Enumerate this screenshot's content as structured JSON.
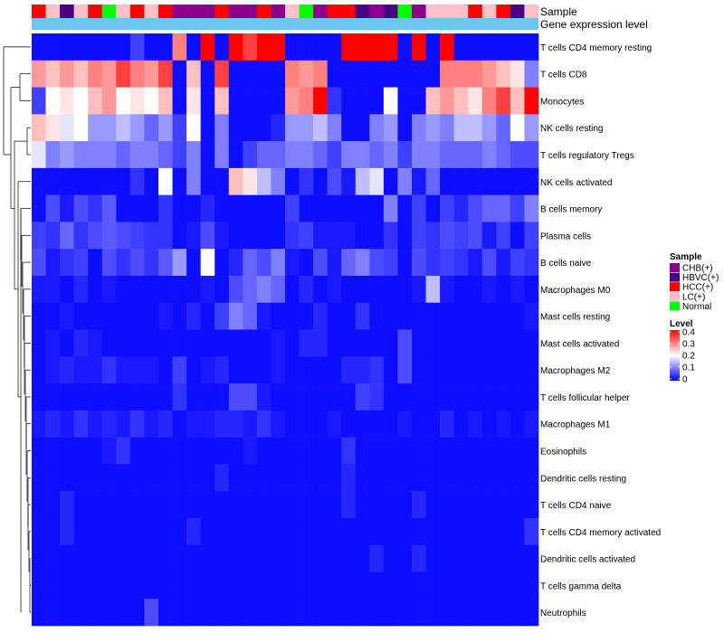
{
  "chart_data": {
    "type": "heatmap",
    "annotation_row_labels": [
      "Sample",
      "Gene expression level"
    ],
    "row_labels": [
      "T cells CD4 memory resting",
      "T cells CD8",
      "Monocytes",
      "NK cells resting",
      "T cells regulatory  Tregs",
      "NK cells activated",
      "B cells memory",
      "Plasma cells",
      "B cells naive",
      "Macrophages M0",
      "Mast cells resting",
      "Mast cells activated",
      "Macrophages M2",
      "T cells follicular helper",
      "Macrophages M1",
      "Eosinophils",
      "Dendritic cells resting",
      "T cells CD4 naive",
      "T cells CD4 memory activated",
      "Dendritic cells activated",
      "T cells gamma delta",
      "Neutrophils"
    ],
    "sample_groups": [
      "HCC(+)",
      "LC(+)",
      "HBVC(+)",
      "LC(+)",
      "HCC(+)",
      "Normal",
      "LC(+)",
      "HCC(+)",
      "LC(+)",
      "HCC(+)",
      "CHB(+)",
      "CHB(+)",
      "CHB(+)",
      "HCC(+)",
      "CHB(+)",
      "CHB(+)",
      "HCC(+)",
      "CHB(+)",
      "LC(+)",
      "Normal",
      "CHB(+)",
      "HCC(+)",
      "HCC(+)",
      "HBVC(+)",
      "CHB(+)",
      "HBVC(+)",
      "Normal",
      "CHB(+)",
      "LC(+)",
      "LC(+)",
      "LC(+)",
      "HCC(+)",
      "LC(+)",
      "HCC(+)",
      "HBVC(+)",
      "LC(+)"
    ],
    "group_colors": {
      "CHB(+)": "#8B008B",
      "HBVC(+)": "#4B0082",
      "HCC(+)": "#FF0000",
      "LC(+)": "#FFC0CB",
      "Normal": "#00FF00"
    },
    "gene_expression_color": "#6CC6F0",
    "values": [
      [
        0.01,
        0.01,
        0.01,
        0.01,
        0.01,
        0.01,
        0.01,
        0.05,
        0.01,
        0.01,
        0.3,
        0.01,
        0.4,
        0.01,
        0.4,
        0.35,
        0.4,
        0.4,
        0.01,
        0.01,
        0.01,
        0.01,
        0.4,
        0.4,
        0.4,
        0.4,
        0.01,
        0.4,
        0.01,
        0.4,
        0.01,
        0.01,
        0.01,
        0.01,
        0.01,
        0.01
      ],
      [
        0.28,
        0.25,
        0.28,
        0.25,
        0.3,
        0.28,
        0.35,
        0.3,
        0.28,
        0.35,
        0.01,
        0.25,
        0.01,
        0.35,
        0.01,
        0.01,
        0.01,
        0.01,
        0.3,
        0.28,
        0.3,
        0.01,
        0.01,
        0.01,
        0.01,
        0.01,
        0.01,
        0.01,
        0.01,
        0.3,
        0.3,
        0.3,
        0.28,
        0.25,
        0.22,
        0.1
      ],
      [
        0.05,
        0.2,
        0.22,
        0.2,
        0.25,
        0.28,
        0.2,
        0.22,
        0.2,
        0.25,
        0.01,
        0.22,
        0.01,
        0.25,
        0.01,
        0.01,
        0.01,
        0.01,
        0.28,
        0.3,
        0.4,
        0.04,
        0.01,
        0.01,
        0.01,
        0.2,
        0.01,
        0.01,
        0.25,
        0.28,
        0.25,
        0.22,
        0.3,
        0.35,
        0.25,
        0.4
      ],
      [
        0.25,
        0.22,
        0.18,
        0.2,
        0.12,
        0.12,
        0.15,
        0.12,
        0.08,
        0.12,
        0.05,
        0.2,
        0.01,
        0.1,
        0.01,
        0.01,
        0.01,
        0.03,
        0.12,
        0.12,
        0.15,
        0.1,
        0.01,
        0.01,
        0.1,
        0.12,
        0.01,
        0.1,
        0.12,
        0.1,
        0.15,
        0.15,
        0.12,
        0.08,
        0.2,
        0.12
      ],
      [
        0.18,
        0.1,
        0.12,
        0.1,
        0.1,
        0.1,
        0.08,
        0.1,
        0.1,
        0.08,
        0.05,
        0.1,
        0.01,
        0.1,
        0.01,
        0.05,
        0.08,
        0.08,
        0.1,
        0.1,
        0.08,
        0.05,
        0.1,
        0.1,
        0.08,
        0.1,
        0.05,
        0.1,
        0.1,
        0.08,
        0.08,
        0.08,
        0.1,
        0.08,
        0.06,
        0.06
      ],
      [
        0.01,
        0.01,
        0.01,
        0.01,
        0.01,
        0.01,
        0.01,
        0.04,
        0.01,
        0.2,
        0.01,
        0.1,
        0.01,
        0.01,
        0.25,
        0.22,
        0.15,
        0.1,
        0.01,
        0.04,
        0.01,
        0.06,
        0.02,
        0.15,
        0.18,
        0.01,
        0.1,
        0.02,
        0.08,
        0.01,
        0.01,
        0.01,
        0.01,
        0.01,
        0.01,
        0.01
      ],
      [
        0.01,
        0.06,
        0.02,
        0.06,
        0.04,
        0.07,
        0.01,
        0.01,
        0.01,
        0.04,
        0.01,
        0.01,
        0.03,
        0.01,
        0.01,
        0.01,
        0.01,
        0.01,
        0.05,
        0.01,
        0.01,
        0.01,
        0.01,
        0.01,
        0.01,
        0.1,
        0.01,
        0.05,
        0.01,
        0.05,
        0.03,
        0.06,
        0.08,
        0.08,
        0.05,
        0.1
      ],
      [
        0.05,
        0.04,
        0.08,
        0.04,
        0.06,
        0.07,
        0.06,
        0.05,
        0.04,
        0.04,
        0.01,
        0.02,
        0.06,
        0.02,
        0.01,
        0.01,
        0.01,
        0.01,
        0.04,
        0.05,
        0.02,
        0.02,
        0.02,
        0.01,
        0.01,
        0.04,
        0.01,
        0.05,
        0.04,
        0.06,
        0.05,
        0.06,
        0.02,
        0.05,
        0.01,
        0.05
      ],
      [
        0.06,
        0.02,
        0.04,
        0.05,
        0.01,
        0.06,
        0.04,
        0.06,
        0.04,
        0.07,
        0.12,
        0.01,
        0.2,
        0.01,
        0.03,
        0.08,
        0.06,
        0.1,
        0.02,
        0.01,
        0.06,
        0.02,
        0.08,
        0.1,
        0.06,
        0.05,
        0.01,
        0.06,
        0.04,
        0.05,
        0.04,
        0.02,
        0.06,
        0.02,
        0.05,
        0.04
      ],
      [
        0.02,
        0.02,
        0.01,
        0.03,
        0.01,
        0.02,
        0.01,
        0.01,
        0.01,
        0.01,
        0.01,
        0.01,
        0.02,
        0.01,
        0.06,
        0.08,
        0.1,
        0.08,
        0.01,
        0.03,
        0.01,
        0.02,
        0.01,
        0.01,
        0.01,
        0.01,
        0.01,
        0.02,
        0.15,
        0.02,
        0.01,
        0.01,
        0.02,
        0.01,
        0.02,
        0.01
      ],
      [
        0.01,
        0.01,
        0.02,
        0.01,
        0.01,
        0.01,
        0.01,
        0.01,
        0.01,
        0.02,
        0.01,
        0.03,
        0.01,
        0.05,
        0.1,
        0.08,
        0.02,
        0.01,
        0.01,
        0.01,
        0.03,
        0.01,
        0.01,
        0.04,
        0.01,
        0.01,
        0.01,
        0.01,
        0.01,
        0.01,
        0.01,
        0.01,
        0.01,
        0.01,
        0.01,
        0.02
      ],
      [
        0.01,
        0.02,
        0.01,
        0.03,
        0.02,
        0.01,
        0.01,
        0.01,
        0.01,
        0.01,
        0.01,
        0.01,
        0.01,
        0.01,
        0.01,
        0.01,
        0.01,
        0.02,
        0.01,
        0.03,
        0.03,
        0.01,
        0.01,
        0.01,
        0.01,
        0.01,
        0.06,
        0.01,
        0.01,
        0.01,
        0.01,
        0.01,
        0.01,
        0.01,
        0.01,
        0.01
      ],
      [
        0.01,
        0.02,
        0.03,
        0.02,
        0.02,
        0.04,
        0.02,
        0.02,
        0.02,
        0.01,
        0.05,
        0.01,
        0.02,
        0.03,
        0.01,
        0.01,
        0.01,
        0.02,
        0.01,
        0.01,
        0.01,
        0.01,
        0.03,
        0.03,
        0.04,
        0.01,
        0.06,
        0.01,
        0.01,
        0.01,
        0.01,
        0.01,
        0.01,
        0.01,
        0.01,
        0.01
      ],
      [
        0.01,
        0.01,
        0.01,
        0.01,
        0.01,
        0.01,
        0.01,
        0.01,
        0.01,
        0.01,
        0.04,
        0.01,
        0.01,
        0.01,
        0.06,
        0.06,
        0.02,
        0.01,
        0.01,
        0.01,
        0.01,
        0.01,
        0.01,
        0.05,
        0.04,
        0.01,
        0.01,
        0.01,
        0.01,
        0.01,
        0.01,
        0.01,
        0.01,
        0.01,
        0.01,
        0.01
      ],
      [
        0.02,
        0.03,
        0.02,
        0.04,
        0.02,
        0.03,
        0.02,
        0.04,
        0.02,
        0.03,
        0.01,
        0.02,
        0.02,
        0.03,
        0.03,
        0.02,
        0.04,
        0.02,
        0.01,
        0.01,
        0.01,
        0.02,
        0.01,
        0.01,
        0.01,
        0.01,
        0.02,
        0.01,
        0.01,
        0.03,
        0.01,
        0.02,
        0.01,
        0.02,
        0.01,
        0.02
      ],
      [
        0.01,
        0.01,
        0.01,
        0.01,
        0.01,
        0.02,
        0.04,
        0.01,
        0.01,
        0.01,
        0.01,
        0.01,
        0.01,
        0.01,
        0.01,
        0.02,
        0.01,
        0.01,
        0.01,
        0.01,
        0.01,
        0.01,
        0.04,
        0.01,
        0.01,
        0.01,
        0.01,
        0.01,
        0.01,
        0.01,
        0.01,
        0.01,
        0.01,
        0.01,
        0.01,
        0.01
      ],
      [
        0.01,
        0.01,
        0.01,
        0.01,
        0.01,
        0.01,
        0.01,
        0.01,
        0.01,
        0.01,
        0.01,
        0.01,
        0.01,
        0.03,
        0.01,
        0.01,
        0.01,
        0.01,
        0.01,
        0.01,
        0.01,
        0.01,
        0.03,
        0.01,
        0.01,
        0.01,
        0.01,
        0.01,
        0.01,
        0.01,
        0.01,
        0.01,
        0.01,
        0.01,
        0.01,
        0.01
      ],
      [
        0.01,
        0.01,
        0.03,
        0.01,
        0.01,
        0.01,
        0.01,
        0.01,
        0.01,
        0.01,
        0.01,
        0.01,
        0.01,
        0.01,
        0.01,
        0.01,
        0.01,
        0.01,
        0.01,
        0.01,
        0.01,
        0.01,
        0.03,
        0.01,
        0.01,
        0.01,
        0.01,
        0.03,
        0.01,
        0.01,
        0.01,
        0.01,
        0.01,
        0.01,
        0.01,
        0.01
      ],
      [
        0.01,
        0.01,
        0.03,
        0.01,
        0.01,
        0.01,
        0.01,
        0.01,
        0.01,
        0.01,
        0.01,
        0.03,
        0.01,
        0.01,
        0.01,
        0.01,
        0.01,
        0.01,
        0.01,
        0.01,
        0.01,
        0.01,
        0.01,
        0.01,
        0.01,
        0.01,
        0.01,
        0.01,
        0.01,
        0.01,
        0.01,
        0.01,
        0.01,
        0.01,
        0.01,
        0.04
      ],
      [
        0.01,
        0.01,
        0.01,
        0.01,
        0.01,
        0.01,
        0.01,
        0.01,
        0.01,
        0.01,
        0.01,
        0.01,
        0.01,
        0.01,
        0.01,
        0.01,
        0.01,
        0.01,
        0.01,
        0.01,
        0.01,
        0.01,
        0.01,
        0.01,
        0.03,
        0.01,
        0.01,
        0.03,
        0.01,
        0.01,
        0.01,
        0.01,
        0.01,
        0.01,
        0.01,
        0.01
      ],
      [
        0.01,
        0.01,
        0.01,
        0.01,
        0.01,
        0.01,
        0.01,
        0.01,
        0.01,
        0.01,
        0.01,
        0.01,
        0.01,
        0.01,
        0.01,
        0.01,
        0.01,
        0.01,
        0.01,
        0.01,
        0.01,
        0.01,
        0.01,
        0.01,
        0.01,
        0.01,
        0.01,
        0.01,
        0.01,
        0.01,
        0.01,
        0.01,
        0.01,
        0.01,
        0.01,
        0.01
      ],
      [
        0.01,
        0.01,
        0.01,
        0.01,
        0.01,
        0.01,
        0.01,
        0.01,
        0.06,
        0.01,
        0.01,
        0.01,
        0.01,
        0.01,
        0.01,
        0.01,
        0.01,
        0.01,
        0.01,
        0.01,
        0.01,
        0.01,
        0.01,
        0.01,
        0.01,
        0.01,
        0.01,
        0.01,
        0.01,
        0.01,
        0.01,
        0.01,
        0.01,
        0.01,
        0.01,
        0.01
      ]
    ],
    "color_scale": {
      "min": 0,
      "max": 0.4,
      "colors": [
        "#0000FF",
        "#FFFFFF",
        "#FF0000"
      ],
      "mid": 0.2
    },
    "legend": {
      "sample_title": "Sample",
      "sample_entries": [
        "CHB(+)",
        "HBVC(+)",
        "HCC(+)",
        "LC(+)",
        "Normal"
      ],
      "level_title": "Level",
      "level_ticks": [
        0.4,
        0.3,
        0.2,
        0.1,
        0
      ],
      "level_tick_labels": [
        "0.4",
        "0.3",
        "0.2",
        "0.1",
        "0"
      ]
    }
  }
}
